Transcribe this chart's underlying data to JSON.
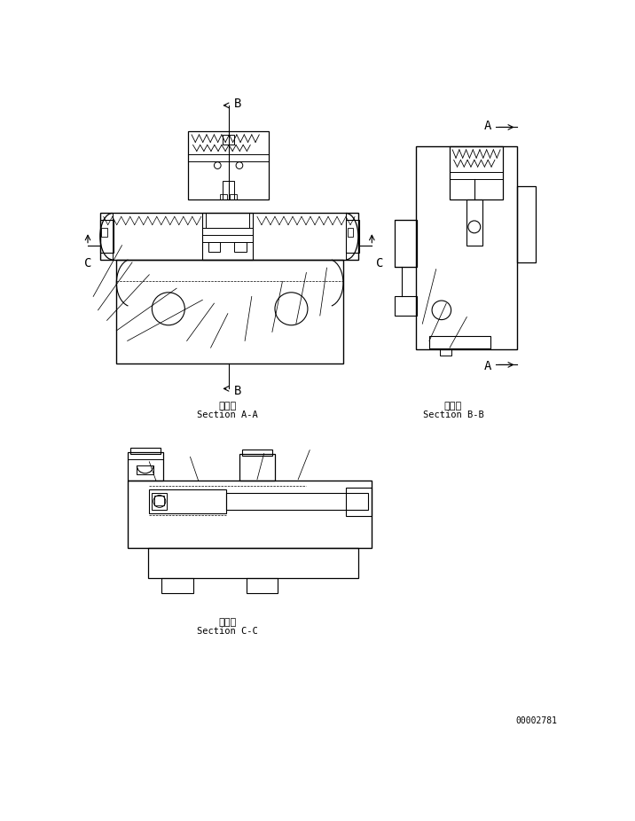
{
  "bg_color": "#ffffff",
  "line_color": "#000000",
  "part_number": "00002781",
  "section_aa_jp": "断　面",
  "section_aa_en": "Section A-A",
  "section_bb_jp": "断　面",
  "section_bb_en": "Section B-B",
  "section_cc_jp": "断　面",
  "section_cc_en": "Section C-C"
}
